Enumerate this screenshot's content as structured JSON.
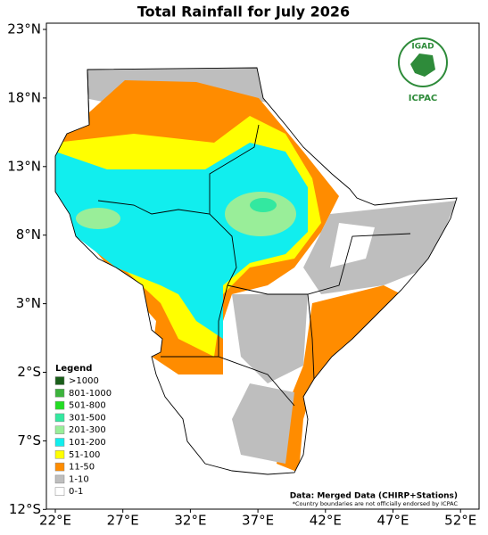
{
  "title": "Total Rainfall for July 2026",
  "axes": {
    "lat_ticks": [
      "23°N",
      "18°N",
      "13°N",
      "8°N",
      "3°N",
      "2°S",
      "7°S",
      "12°S"
    ],
    "lon_ticks": [
      "22°E",
      "27°E",
      "32°E",
      "37°E",
      "42°E",
      "47°E",
      "52°E"
    ]
  },
  "legend": {
    "title": "Legend",
    "items": [
      {
        "label": ">1000",
        "color": "#1a5e1a"
      },
      {
        "label": "801-1000",
        "color": "#3cb33c"
      },
      {
        "label": "501-800",
        "color": "#22dd22"
      },
      {
        "label": "301-500",
        "color": "#33e8a0"
      },
      {
        "label": "201-300",
        "color": "#99ee99"
      },
      {
        "label": "101-200",
        "color": "#11eeee"
      },
      {
        "label": "51-100",
        "color": "#ffff00"
      },
      {
        "label": "11-50",
        "color": "#ff8c00"
      },
      {
        "label": "1-10",
        "color": "#bebebe"
      },
      {
        "label": "0-1",
        "color": "#ffffff"
      }
    ]
  },
  "source": "Data: Merged Data (CHIRP+Stations)",
  "disclaimer": "*Country boundaries are not officially endorsed by ICPAC",
  "logo": {
    "name": "IGAD",
    "org": "ICPAC"
  }
}
